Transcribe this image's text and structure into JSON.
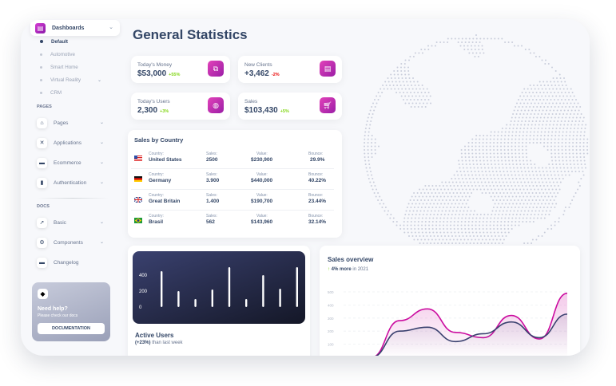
{
  "sidebar": {
    "top_item": {
      "label": "Dashboards",
      "icon": "dashboard-icon"
    },
    "sub_items": [
      {
        "label": "Default",
        "active": true
      },
      {
        "label": "Automotive"
      },
      {
        "label": "Smart Home"
      },
      {
        "label": "Virtual Reality",
        "has_chevron": true
      },
      {
        "label": "CRM"
      }
    ],
    "pages_heading": "PAGES",
    "pages_items": [
      {
        "label": "Pages",
        "icon": "shop-icon"
      },
      {
        "label": "Applications",
        "icon": "tools-icon"
      },
      {
        "label": "Ecommerce",
        "icon": "card-icon"
      },
      {
        "label": "Authentication",
        "icon": "document-icon"
      }
    ],
    "docs_heading": "DOCS",
    "docs_items": [
      {
        "label": "Basic",
        "icon": "rocket-icon"
      },
      {
        "label": "Components",
        "icon": "settings-icon"
      },
      {
        "label": "Changelog",
        "icon": "credit-card-icon"
      }
    ],
    "help": {
      "title": "Need help?",
      "subtitle": "Please check our docs",
      "button": "DOCUMENTATION"
    }
  },
  "page_title": "General Statistics",
  "stats": [
    {
      "name": "Today's Money",
      "value": "$53,000",
      "change": "+55%",
      "trend": "pos",
      "icon": "money-icon"
    },
    {
      "name": "New Clients",
      "value": "+3,462",
      "change": "-2%",
      "trend": "neg",
      "icon": "clipboard-icon"
    },
    {
      "name": "Today's Users",
      "value": "2,300",
      "change": "+3%",
      "trend": "pos",
      "icon": "globe-icon"
    },
    {
      "name": "Sales",
      "value": "$103,430",
      "change": "+5%",
      "trend": "pos",
      "icon": "cart-icon"
    }
  ],
  "sales_by_country": {
    "title": "Sales by Country",
    "labels": {
      "country": "Country:",
      "sales": "Sales:",
      "value": "Value:",
      "bounce": "Bounce:"
    },
    "rows": [
      {
        "country": "United States",
        "sales": "2500",
        "value": "$230,900",
        "bounce": "29.9%"
      },
      {
        "country": "Germany",
        "sales": "3.900",
        "value": "$440,000",
        "bounce": "40.22%"
      },
      {
        "country": "Great Britain",
        "sales": "1.400",
        "value": "$190,700",
        "bounce": "23.44%"
      },
      {
        "country": "Brasil",
        "sales": "562",
        "value": "$143,960",
        "bounce": "32.14%"
      }
    ]
  },
  "active_users": {
    "title": "Active Users",
    "change": "(+23%)",
    "suffix": "than last week",
    "chart_data": {
      "type": "bar",
      "yticks": [
        "400",
        "200",
        "0"
      ],
      "ylim": [
        0,
        500
      ],
      "values": [
        450,
        200,
        100,
        220,
        500,
        100,
        400,
        230,
        500
      ]
    }
  },
  "sales_overview": {
    "title": "Sales overview",
    "change": "4% more",
    "suffix": "in 2021",
    "chart_data": {
      "type": "area",
      "yticks": [
        "500",
        "400",
        "300",
        "200",
        "100"
      ],
      "ylim": [
        0,
        500
      ],
      "series": [
        {
          "values": [
            0,
            0,
            280,
            370,
            190,
            150,
            320,
            140,
            490
          ],
          "color": "#cb0c9f"
        },
        {
          "values": [
            0,
            0,
            200,
            230,
            120,
            180,
            270,
            150,
            330
          ],
          "color": "#3a416f"
        }
      ]
    }
  },
  "colors": {
    "accent": "#cb0c9f",
    "dark": "#344767"
  }
}
